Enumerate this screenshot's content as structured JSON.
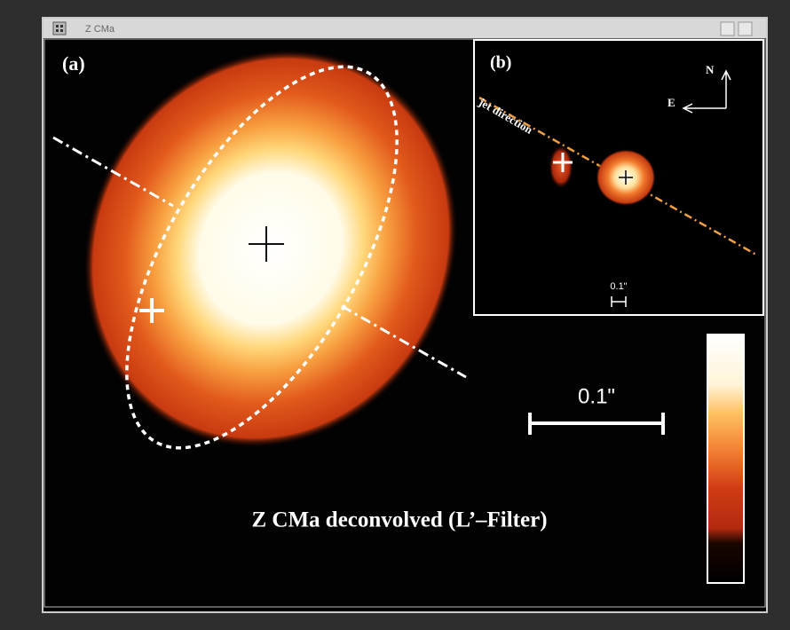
{
  "window": {
    "title": "Z CMa"
  },
  "panel_a": {
    "label": "(a)",
    "scale_label": "0.1\"",
    "caption": "Z CMa deconvolved (L’–Filter)"
  },
  "panel_b": {
    "label": "(b)",
    "jet_label": "jet direction",
    "north": "N",
    "east": "E",
    "scale_label": "0.1\""
  }
}
